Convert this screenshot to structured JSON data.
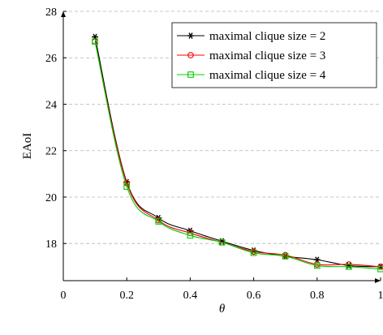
{
  "chart_data": {
    "type": "line",
    "title": "",
    "xlabel": "θ",
    "ylabel": "EAoI",
    "xlim": [
      0,
      1
    ],
    "ylim": [
      16.4,
      28
    ],
    "x_ticks": [
      0,
      0.2,
      0.4,
      0.6,
      0.8,
      1
    ],
    "x_tick_labels": [
      "0",
      "0.2",
      "0.4",
      "0.6",
      "0.8",
      "1"
    ],
    "y_ticks": [
      18,
      20,
      22,
      24,
      26,
      28
    ],
    "y_tick_labels": [
      "18",
      "20",
      "22",
      "24",
      "26",
      "28"
    ],
    "grid": "horizontal dashed",
    "legend_position": "top-right",
    "x": [
      0.1,
      0.2,
      0.3,
      0.4,
      0.5,
      0.6,
      0.7,
      0.8,
      0.9,
      1.0
    ],
    "series": [
      {
        "name": "maximal clique size = 2",
        "color": "#000000",
        "marker": "star",
        "values": [
          26.9,
          20.65,
          19.1,
          18.55,
          18.1,
          17.7,
          17.45,
          17.3,
          17.05,
          17.0
        ]
      },
      {
        "name": "maximal clique size = 3",
        "color": "#ff0000",
        "marker": "circle",
        "values": [
          26.7,
          20.6,
          19.0,
          18.45,
          18.05,
          17.65,
          17.5,
          17.1,
          17.1,
          17.0
        ]
      },
      {
        "name": "maximal clique size = 4",
        "color": "#00cc00",
        "marker": "square",
        "values": [
          26.7,
          20.45,
          18.95,
          18.35,
          18.05,
          17.6,
          17.45,
          17.05,
          17.0,
          16.9
        ]
      }
    ]
  }
}
